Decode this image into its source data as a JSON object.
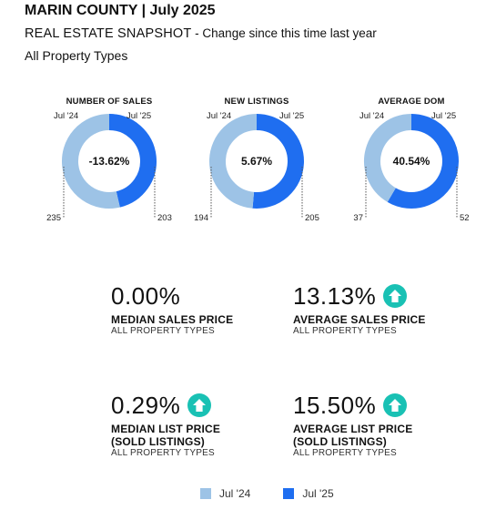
{
  "header": {
    "title": "MARIN COUNTY | July 2025",
    "subtitle_main": "REAL ESTATE SNAPSHOT",
    "subtitle_note": " - Change since this time last year",
    "property_types": "All Property Types"
  },
  "colors": {
    "prev": "#9dc3e6",
    "curr": "#1f6ef0",
    "arrow": "#19c1b4"
  },
  "chart_data": [
    {
      "type": "pie",
      "title": "NUMBER OF SALES",
      "categories": [
        "Jul '24",
        "Jul '25"
      ],
      "values": [
        235,
        203
      ],
      "center_label": "-13.62%",
      "prev_label": "Jul '24",
      "curr_label": "Jul '25"
    },
    {
      "type": "pie",
      "title": "NEW LISTINGS",
      "categories": [
        "Jul '24",
        "Jul '25"
      ],
      "values": [
        194,
        205
      ],
      "center_label": "5.67%",
      "prev_label": "Jul '24",
      "curr_label": "Jul '25"
    },
    {
      "type": "pie",
      "title": "AVERAGE DOM",
      "categories": [
        "Jul '24",
        "Jul '25"
      ],
      "values": [
        37,
        52
      ],
      "center_label": "40.54%",
      "prev_label": "Jul '24",
      "curr_label": "Jul '25"
    }
  ],
  "kpis": [
    {
      "value": "0.00%",
      "label": "MEDIAN SALES PRICE",
      "label2": "",
      "sub": "ALL PROPERTY TYPES",
      "arrow": false
    },
    {
      "value": "13.13%",
      "label": "AVERAGE SALES PRICE",
      "label2": "",
      "sub": "ALL PROPERTY TYPES",
      "arrow": true
    },
    {
      "value": "0.29%",
      "label": "MEDIAN LIST PRICE",
      "label2": "(SOLD LISTINGS)",
      "sub": "ALL PROPERTY TYPES",
      "arrow": true
    },
    {
      "value": "15.50%",
      "label": "AVERAGE LIST PRICE",
      "label2": "(SOLD LISTINGS)",
      "sub": "ALL PROPERTY TYPES",
      "arrow": true
    }
  ],
  "legend": [
    {
      "label": "Jul '24",
      "color": "#9dc3e6"
    },
    {
      "label": "Jul '25",
      "color": "#1f6ef0"
    }
  ]
}
